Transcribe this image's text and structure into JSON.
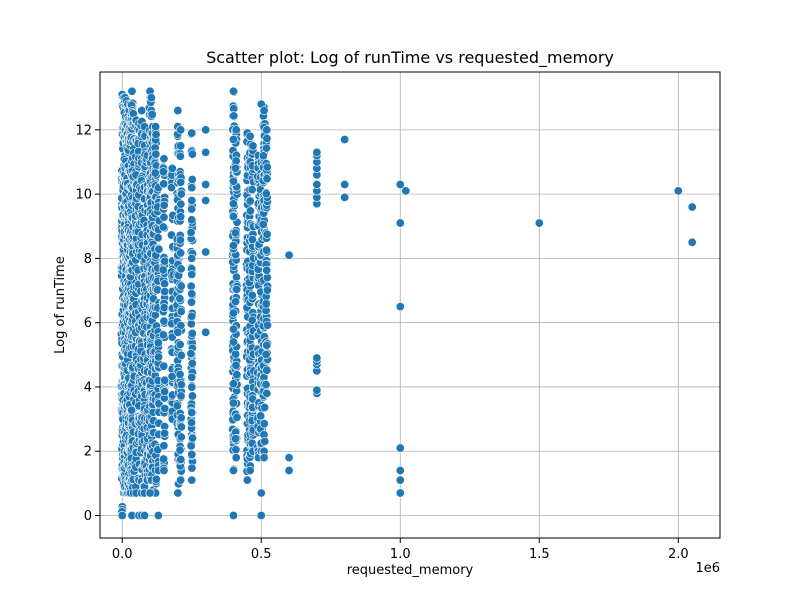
{
  "chart_data": {
    "type": "scatter",
    "title": "Scatter plot: Log of runTime vs requested_memory",
    "xlabel": "requested_memory",
    "ylabel": "Log of runTime",
    "x_offset_label": "1e6",
    "xlim": [
      -80000,
      2150000
    ],
    "ylim": [
      -0.7,
      13.8
    ],
    "x_ticks": [
      0,
      500000,
      1000000,
      1500000,
      2000000
    ],
    "x_tick_labels": [
      "0.0",
      "0.5",
      "1.0",
      "1.5",
      "2.0"
    ],
    "y_ticks": [
      0,
      2,
      4,
      6,
      8,
      10,
      12
    ],
    "y_tick_labels": [
      "0",
      "2",
      "4",
      "6",
      "8",
      "10",
      "12"
    ],
    "grid": true,
    "marker_color": "#1f77b4",
    "marker_edge_color": "#ffffff",
    "columns": [
      {
        "x": 0,
        "ymin": 0,
        "ymax": 13.1
      },
      {
        "x": 5000,
        "ymin": 0.7,
        "ymax": 13.0
      },
      {
        "x": 10000,
        "ymin": 0.7,
        "ymax": 13.0
      },
      {
        "x": 15000,
        "ymin": 0.7,
        "ymax": 12.9
      },
      {
        "x": 20000,
        "ymin": 0.7,
        "ymax": 12.8
      },
      {
        "x": 25000,
        "ymin": 0.7,
        "ymax": 12.6
      },
      {
        "x": 30000,
        "ymin": 0.7,
        "ymax": 12.8
      },
      {
        "x": 35000,
        "ymin": 1.1,
        "ymax": 13.2
      },
      {
        "x": 40000,
        "ymin": 0.7,
        "ymax": 12.5
      },
      {
        "x": 50000,
        "ymin": 0.7,
        "ymax": 12.3
      },
      {
        "x": 60000,
        "ymin": 1.1,
        "ymax": 12.2
      },
      {
        "x": 70000,
        "ymin": 0.7,
        "ymax": 12.6
      },
      {
        "x": 80000,
        "ymin": 0.7,
        "ymax": 12.1
      },
      {
        "x": 90000,
        "ymin": 1.1,
        "ymax": 11.2
      },
      {
        "x": 100000,
        "ymin": 0.7,
        "ymax": 13.2
      },
      {
        "x": 105000,
        "ymin": 1.1,
        "ymax": 13.0
      },
      {
        "x": 110000,
        "ymin": 0.7,
        "ymax": 12.1
      },
      {
        "x": 120000,
        "ymin": 0.7,
        "ymax": 12.1
      },
      {
        "x": 130000,
        "ymin": 1.4,
        "ymax": 10.2
      },
      {
        "x": 150000,
        "ymin": 1.4,
        "ymax": 11.1
      },
      {
        "x": 180000,
        "ymin": 3.0,
        "ymax": 10.8
      },
      {
        "x": 200000,
        "ymin": 0.7,
        "ymax": 12.1
      },
      {
        "x": 210000,
        "ymin": 1.1,
        "ymax": 11.5
      },
      {
        "x": 250000,
        "ymin": 1.1,
        "ymax": 11.9
      },
      {
        "x": 400000,
        "ymin": 1.4,
        "ymax": 13.2
      },
      {
        "x": 410000,
        "ymin": 1.8,
        "ymax": 12.0
      },
      {
        "x": 450000,
        "ymin": 1.1,
        "ymax": 11.9
      },
      {
        "x": 460000,
        "ymin": 1.4,
        "ymax": 11.8
      },
      {
        "x": 470000,
        "ymin": 2.0,
        "ymax": 11.5
      },
      {
        "x": 490000,
        "ymin": 1.8,
        "ymax": 11.2
      },
      {
        "x": 500000,
        "ymin": 2.0,
        "ymax": 11.0
      },
      {
        "x": 510000,
        "ymin": 1.8,
        "ymax": 12.7
      },
      {
        "x": 520000,
        "ymin": 3.8,
        "ymax": 12.0
      }
    ],
    "points": [
      [
        0,
        0
      ],
      [
        35000,
        0
      ],
      [
        60000,
        0
      ],
      [
        70000,
        0
      ],
      [
        80000,
        0
      ],
      [
        130000,
        0
      ],
      [
        400000,
        0
      ],
      [
        500000,
        0
      ],
      [
        500000,
        0.7
      ],
      [
        200000,
        0.7
      ],
      [
        100000,
        0.7
      ],
      [
        250000,
        1.1
      ],
      [
        600000,
        1.4
      ],
      [
        600000,
        1.8
      ],
      [
        600000,
        8.1
      ],
      [
        200000,
        5.7
      ],
      [
        250000,
        6.2
      ],
      [
        250000,
        6.9
      ],
      [
        250000,
        7.5
      ],
      [
        250000,
        8.0
      ],
      [
        250000,
        9.2
      ],
      [
        250000,
        9.8
      ],
      [
        250000,
        10.2
      ],
      [
        250000,
        11.9
      ],
      [
        250000,
        4.3
      ],
      [
        250000,
        3.2
      ],
      [
        250000,
        1.9
      ],
      [
        300000,
        5.7
      ],
      [
        300000,
        8.2
      ],
      [
        300000,
        9.8
      ],
      [
        300000,
        10.3
      ],
      [
        300000,
        11.3
      ],
      [
        300000,
        12.0
      ],
      [
        200000,
        12.1
      ],
      [
        200000,
        12.6
      ],
      [
        210000,
        12.0
      ],
      [
        400000,
        3.5
      ],
      [
        400000,
        4.1
      ],
      [
        400000,
        5.4
      ],
      [
        400000,
        5.8
      ],
      [
        400000,
        6.3
      ],
      [
        400000,
        8.3
      ],
      [
        400000,
        8.4
      ],
      [
        400000,
        9.3
      ],
      [
        400000,
        9.7
      ],
      [
        400000,
        10.4
      ],
      [
        400000,
        11.7
      ],
      [
        500000,
        12.8
      ],
      [
        510000,
        12.6
      ],
      [
        700000,
        3.8
      ],
      [
        700000,
        3.9
      ],
      [
        700000,
        4.5
      ],
      [
        700000,
        4.7
      ],
      [
        700000,
        4.8
      ],
      [
        700000,
        4.9
      ],
      [
        700000,
        9.7
      ],
      [
        700000,
        9.9
      ],
      [
        700000,
        10.1
      ],
      [
        700000,
        10.3
      ],
      [
        700000,
        10.6
      ],
      [
        700000,
        10.8
      ],
      [
        700000,
        11.0
      ],
      [
        700000,
        11.2
      ],
      [
        700000,
        11.3
      ],
      [
        800000,
        9.9
      ],
      [
        800000,
        10.3
      ],
      [
        800000,
        11.7
      ],
      [
        1000000,
        0.7
      ],
      [
        1000000,
        1.1
      ],
      [
        1000000,
        1.4
      ],
      [
        1000000,
        2.1
      ],
      [
        1000000,
        6.5
      ],
      [
        1000000,
        9.1
      ],
      [
        1000000,
        10.3
      ],
      [
        1020000,
        10.1
      ],
      [
        1500000,
        9.1
      ],
      [
        2000000,
        10.1
      ],
      [
        2050000,
        9.6
      ],
      [
        2050000,
        8.5
      ]
    ]
  }
}
